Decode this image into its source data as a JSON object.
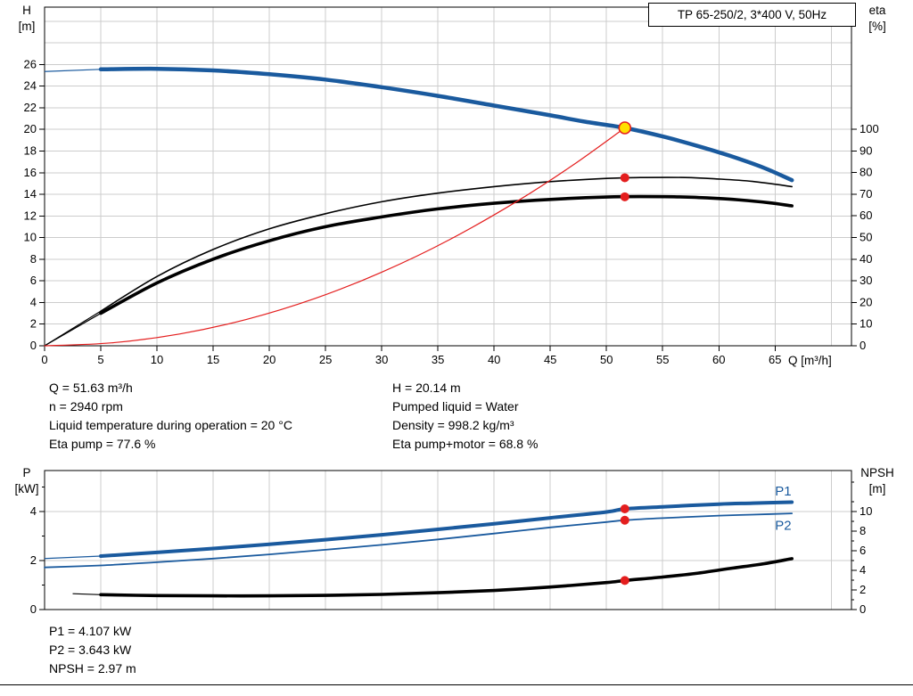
{
  "title_box": "TP 65-250/2, 3*400 V, 50Hz",
  "colors": {
    "grid": "#cccccc",
    "axis": "#000000",
    "curve_blue": "#1a5a9e",
    "curve_red": "#e41e1e",
    "curve_black": "#000000",
    "duty_fill": "#ffe000"
  },
  "axis_labels": {
    "top_left_1": "H",
    "top_left_2": "[m]",
    "top_right_1": "eta",
    "top_right_2": "[%]",
    "x_label": "Q [m³/h]",
    "bottom_left_1": "P",
    "bottom_left_2": "[kW]",
    "bottom_right_1": "NPSH",
    "bottom_right_2": "[m]"
  },
  "info": {
    "left": [
      "Q = 51.63 m³/h",
      "n = 2940 rpm",
      "Liquid temperature during operation = 20 °C",
      "Eta pump = 77.6 %"
    ],
    "right": [
      "H = 20.14 m",
      "Pumped liquid = Water",
      "Density = 998.2 kg/m³",
      "Eta pump+motor = 68.8 %"
    ]
  },
  "footer": [
    "P1 = 4.107 kW",
    "P2 = 3.643 kW",
    "NPSH = 2.97 m"
  ],
  "duty_point": {
    "q_m3h": 51.63,
    "h_m": 20.14,
    "eta_pump_pct": 77.6,
    "eta_total_pct": 68.8,
    "p1_kw": 4.107,
    "p2_kw": 3.643,
    "npsh_m": 2.97
  },
  "chart_data": [
    {
      "name": "head-eta-chart",
      "type": "line",
      "title": "TP 65-250/2, 3*400 V, 50Hz",
      "x_axis": {
        "label": "Q [m³/h]",
        "min": 0,
        "max": 71.8,
        "ticks": [
          0,
          5,
          10,
          15,
          20,
          25,
          30,
          35,
          40,
          45,
          50,
          55,
          60,
          65
        ],
        "grid": [
          5,
          10,
          15,
          20,
          25,
          30,
          35,
          40,
          45,
          50,
          55,
          60,
          65,
          70
        ]
      },
      "left_axis": {
        "label": "H [m]",
        "min": 0,
        "max": 31.3,
        "ticks": [
          0,
          2,
          4,
          6,
          8,
          10,
          12,
          14,
          16,
          18,
          20,
          22,
          24,
          26
        ],
        "grid": [
          2,
          4,
          6,
          8,
          10,
          12,
          14,
          16,
          18,
          20,
          22,
          24,
          26,
          28,
          30
        ]
      },
      "right_axis": {
        "label": "eta [%]",
        "min": 0,
        "max": 156.4,
        "ticks": [
          0,
          10,
          20,
          30,
          40,
          50,
          60,
          70,
          80,
          90,
          100
        ]
      },
      "series": [
        {
          "name": "head",
          "label": "H",
          "axis": "left",
          "color": "#1a5a9e",
          "width": 4.5,
          "lead": [
            [
              0,
              25.35
            ],
            [
              5,
              25.55
            ]
          ],
          "points": [
            [
              5,
              25.55
            ],
            [
              10,
              25.6
            ],
            [
              15,
              25.45
            ],
            [
              20,
              25.1
            ],
            [
              25,
              24.6
            ],
            [
              30,
              23.9
            ],
            [
              35,
              23.1
            ],
            [
              40,
              22.2
            ],
            [
              45,
              21.3
            ],
            [
              48,
              20.72
            ],
            [
              51.63,
              20.14
            ],
            [
              55,
              19.35
            ],
            [
              58,
              18.5
            ],
            [
              61,
              17.55
            ],
            [
              64,
              16.45
            ],
            [
              66.5,
              15.3
            ]
          ]
        },
        {
          "name": "eta-pump",
          "label": "Eta pump",
          "axis": "right",
          "color": "#000000",
          "width": 1.6,
          "lead": [
            [
              0,
              0
            ],
            [
              5,
              16
            ]
          ],
          "points": [
            [
              5,
              16
            ],
            [
              10,
              32
            ],
            [
              15,
              44.5
            ],
            [
              20,
              54
            ],
            [
              25,
              61
            ],
            [
              30,
              66.5
            ],
            [
              35,
              70.5
            ],
            [
              40,
              73.5
            ],
            [
              45,
              75.8
            ],
            [
              50,
              77.3
            ],
            [
              53,
              77.7
            ],
            [
              57,
              77.7
            ],
            [
              60,
              77
            ],
            [
              63,
              75.9
            ],
            [
              66.5,
              73.5
            ]
          ]
        },
        {
          "name": "eta-pump-motor",
          "label": "Eta pump+motor",
          "axis": "right",
          "color": "#000000",
          "width": 3.6,
          "lead": [
            [
              0,
              0
            ],
            [
              5,
              15
            ]
          ],
          "points": [
            [
              5,
              15
            ],
            [
              10,
              29
            ],
            [
              15,
              40
            ],
            [
              20,
              48.5
            ],
            [
              25,
              55
            ],
            [
              30,
              59.5
            ],
            [
              35,
              63.2
            ],
            [
              40,
              65.8
            ],
            [
              45,
              67.6
            ],
            [
              50,
              68.7
            ],
            [
              53,
              68.9
            ],
            [
              56,
              68.8
            ],
            [
              59,
              68.3
            ],
            [
              62,
              67.3
            ],
            [
              64.5,
              66
            ],
            [
              66.5,
              64.6
            ]
          ]
        },
        {
          "name": "system-curve",
          "label": "System curve",
          "axis": "left",
          "color": "#e41e1e",
          "width": 1.2,
          "points": [
            [
              0,
              0
            ],
            [
              6,
              0.27
            ],
            [
              12,
              1.09
            ],
            [
              18,
              2.45
            ],
            [
              24,
              4.35
            ],
            [
              30,
              6.8
            ],
            [
              36,
              9.79
            ],
            [
              42,
              13.33
            ],
            [
              47,
              16.69
            ],
            [
              51.63,
              20.14
            ]
          ]
        }
      ],
      "markers": [
        {
          "name": "duty-point",
          "x": 51.63,
          "y": 20.14,
          "axis": "left",
          "type": "duty",
          "r": 6.5,
          "fill": "#ffe000",
          "stroke": "#e41e1e"
        },
        {
          "name": "eta-pump-point",
          "x": 51.63,
          "y": 77.6,
          "axis": "right",
          "type": "dot",
          "r": 5,
          "fill": "#e41e1e"
        },
        {
          "name": "eta-pump-motor-point",
          "x": 51.63,
          "y": 68.8,
          "axis": "right",
          "type": "dot",
          "r": 5,
          "fill": "#e41e1e"
        }
      ],
      "annotations": []
    },
    {
      "name": "power-npsh-chart",
      "type": "line",
      "title": "",
      "x_axis": {
        "label": "",
        "min": 0,
        "max": 71.8,
        "ticks": [],
        "grid": [
          5,
          10,
          15,
          20,
          25,
          30,
          35,
          40,
          45,
          50,
          55,
          60,
          65,
          70
        ]
      },
      "left_axis": {
        "label": "P [kW]",
        "min": 0,
        "max": 5.67,
        "ticks": [
          0,
          2,
          4
        ],
        "minor": [
          1,
          3,
          5
        ],
        "grid": [
          2,
          4
        ]
      },
      "right_axis": {
        "label": "NPSH [m]",
        "min": 0,
        "max": 14.2,
        "ticks": [
          0,
          2,
          4,
          6,
          8,
          10
        ],
        "minor": [
          1,
          3,
          5,
          7,
          9,
          11,
          13
        ]
      },
      "series": [
        {
          "name": "p1",
          "label": "P1",
          "axis": "left",
          "color": "#1a5a9e",
          "width": 4,
          "lead": [
            [
              0,
              2.08
            ],
            [
              5,
              2.18
            ]
          ],
          "points": [
            [
              5,
              2.18
            ],
            [
              10,
              2.33
            ],
            [
              15,
              2.49
            ],
            [
              20,
              2.66
            ],
            [
              25,
              2.85
            ],
            [
              30,
              3.05
            ],
            [
              35,
              3.27
            ],
            [
              40,
              3.5
            ],
            [
              45,
              3.74
            ],
            [
              50,
              3.98
            ],
            [
              51.63,
              4.107
            ],
            [
              55,
              4.19
            ],
            [
              60,
              4.3
            ],
            [
              63,
              4.34
            ],
            [
              66.5,
              4.38
            ]
          ]
        },
        {
          "name": "p2",
          "label": "P2",
          "axis": "left",
          "color": "#1a5a9e",
          "width": 1.8,
          "points": [
            [
              0,
              1.72
            ],
            [
              5,
              1.8
            ],
            [
              10,
              1.93
            ],
            [
              15,
              2.08
            ],
            [
              20,
              2.25
            ],
            [
              25,
              2.44
            ],
            [
              30,
              2.64
            ],
            [
              35,
              2.86
            ],
            [
              40,
              3.1
            ],
            [
              45,
              3.35
            ],
            [
              50,
              3.57
            ],
            [
              51.63,
              3.643
            ],
            [
              55,
              3.73
            ],
            [
              60,
              3.83
            ],
            [
              63,
              3.87
            ],
            [
              66.5,
              3.92
            ]
          ]
        },
        {
          "name": "npsh",
          "label": "NPSH",
          "axis": "right",
          "color": "#000000",
          "width": 3.6,
          "lead": [
            [
              2.5,
              1.62
            ],
            [
              5,
              1.52
            ]
          ],
          "points": [
            [
              5,
              1.52
            ],
            [
              10,
              1.43
            ],
            [
              15,
              1.4
            ],
            [
              20,
              1.4
            ],
            [
              25,
              1.45
            ],
            [
              30,
              1.55
            ],
            [
              35,
              1.72
            ],
            [
              40,
              1.95
            ],
            [
              45,
              2.3
            ],
            [
              50,
              2.76
            ],
            [
              51.63,
              2.97
            ],
            [
              55,
              3.32
            ],
            [
              58,
              3.7
            ],
            [
              61,
              4.2
            ],
            [
              64,
              4.68
            ],
            [
              66.5,
              5.2
            ]
          ]
        }
      ],
      "markers": [
        {
          "name": "p1-point",
          "x": 51.63,
          "y": 4.107,
          "axis": "left",
          "type": "dot",
          "r": 5,
          "fill": "#e41e1e"
        },
        {
          "name": "p2-point",
          "x": 51.63,
          "y": 3.643,
          "axis": "left",
          "type": "dot",
          "r": 5,
          "fill": "#e41e1e"
        },
        {
          "name": "npsh-point",
          "x": 51.63,
          "y": 2.97,
          "axis": "right",
          "type": "dot",
          "r": 5,
          "fill": "#e41e1e"
        }
      ],
      "annotations": [
        {
          "text": "P1",
          "x": 65.0,
          "y": 4.65,
          "axis": "left",
          "color": "#1a5a9e"
        },
        {
          "text": "P2",
          "x": 65.0,
          "y": 3.25,
          "axis": "left",
          "color": "#1a5a9e"
        }
      ]
    }
  ]
}
